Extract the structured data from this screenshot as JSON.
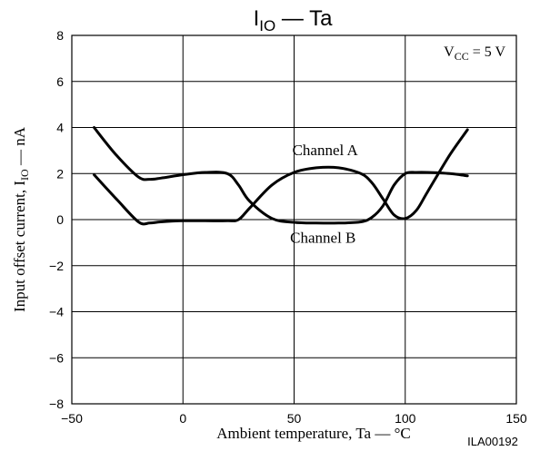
{
  "chart_data": {
    "type": "line",
    "title": {
      "main": "I",
      "sub": "IO",
      "rest": " — Ta"
    },
    "xlabel": "Ambient temperature, Ta — °C",
    "ylabel": {
      "prefix": "Input offset current, I",
      "sub": "IO",
      "suffix": " — nA"
    },
    "xlim": [
      -50,
      150
    ],
    "ylim": [
      -8,
      8
    ],
    "xticks": [
      -50,
      0,
      50,
      100,
      150
    ],
    "xtick_labels": [
      "−50",
      "0",
      "50",
      "100",
      "150"
    ],
    "yticks": [
      -8,
      -6,
      -4,
      -2,
      0,
      2,
      4,
      6,
      8
    ],
    "ytick_labels": [
      "−8",
      "−6",
      "−4",
      "−2",
      "0",
      "2",
      "4",
      "6",
      "8"
    ],
    "grid": true,
    "annotation": {
      "prefix": "V",
      "sub": "CC",
      "suffix": " = 5 V"
    },
    "figure_code": "ILA00192",
    "series": [
      {
        "name": "Channel A",
        "x": [
          -40,
          -30,
          -20,
          -15,
          -10,
          0,
          10,
          20,
          25,
          30,
          40,
          50,
          60,
          70,
          80,
          85,
          90,
          95,
          100,
          105,
          110,
          120,
          128
        ],
        "y": [
          4.0,
          2.8,
          1.85,
          1.75,
          1.8,
          1.95,
          2.05,
          2.0,
          1.5,
          0.8,
          0.05,
          -0.12,
          -0.15,
          -0.15,
          -0.1,
          0.1,
          0.6,
          1.5,
          2.0,
          2.05,
          2.05,
          2.0,
          1.9
        ]
      },
      {
        "name": "Channel B",
        "x": [
          -40,
          -30,
          -20,
          -15,
          -10,
          0,
          10,
          20,
          25,
          30,
          40,
          50,
          60,
          70,
          80,
          85,
          90,
          95,
          100,
          105,
          110,
          120,
          128
        ],
        "y": [
          1.95,
          0.9,
          -0.1,
          -0.15,
          -0.1,
          -0.05,
          -0.05,
          -0.05,
          0.0,
          0.5,
          1.5,
          2.05,
          2.25,
          2.25,
          2.0,
          1.6,
          0.9,
          0.2,
          0.05,
          0.4,
          1.2,
          2.8,
          3.9
        ]
      }
    ],
    "series_labels": [
      {
        "text": "Channel A",
        "x": 64,
        "y": 2.8
      },
      {
        "text": "Channel B",
        "x": 63,
        "y": -1.0
      }
    ]
  }
}
